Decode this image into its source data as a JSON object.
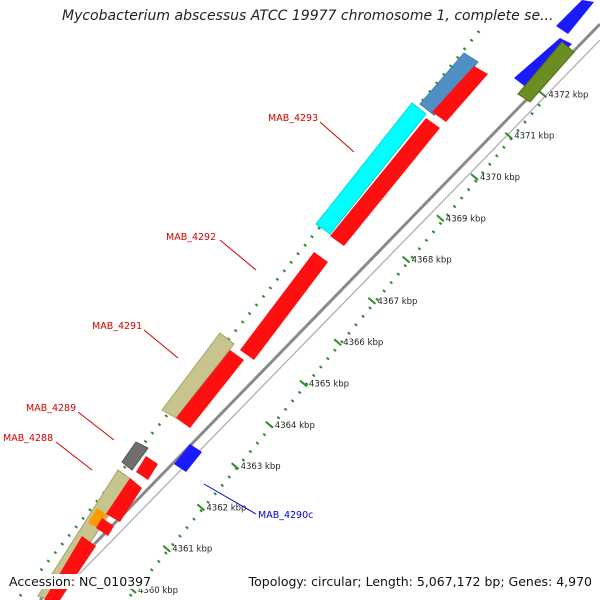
{
  "title": "Mycobacterium abscessus ATCC 19977 chromosome 1, complete se...",
  "footer": {
    "accession": "Accession: NC_010397",
    "summary": "Topology: circular; Length: 5,067,172 bp; Genes: 4,970"
  },
  "colors": {
    "backbone": "#8a8a8a",
    "tick": "#2e8b2e",
    "label_forward": "#d40000",
    "label_reverse": "#0000cc"
  },
  "ticks": [
    {
      "label": "4360 kbp"
    },
    {
      "label": "4361 kbp"
    },
    {
      "label": "4362 kbp"
    },
    {
      "label": "4363 kbp"
    },
    {
      "label": "4364 kbp"
    },
    {
      "label": "4365 kbp"
    },
    {
      "label": "4366 kbp"
    },
    {
      "label": "4367 kbp"
    },
    {
      "label": "4368 kbp"
    },
    {
      "label": "4369 kbp"
    },
    {
      "label": "4370 kbp"
    },
    {
      "label": "4371 kbp"
    },
    {
      "label": "4372 kbp"
    }
  ],
  "gene_labels": [
    {
      "name": "MAB_4293",
      "strand": "forward"
    },
    {
      "name": "MAB_4292",
      "strand": "forward"
    },
    {
      "name": "MAB_4291",
      "strand": "forward"
    },
    {
      "name": "MAB_4289",
      "strand": "forward"
    },
    {
      "name": "MAB_4288",
      "strand": "forward"
    },
    {
      "name": "MAB_4290c",
      "strand": "reverse"
    }
  ]
}
